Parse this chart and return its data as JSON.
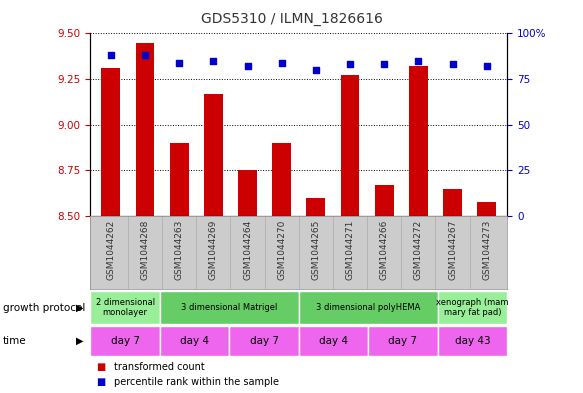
{
  "title": "GDS5310 / ILMN_1826616",
  "samples": [
    "GSM1044262",
    "GSM1044268",
    "GSM1044263",
    "GSM1044269",
    "GSM1044264",
    "GSM1044270",
    "GSM1044265",
    "GSM1044271",
    "GSM1044266",
    "GSM1044272",
    "GSM1044267",
    "GSM1044273"
  ],
  "bar_values": [
    9.31,
    9.45,
    8.9,
    9.17,
    8.75,
    8.9,
    8.6,
    9.27,
    8.67,
    9.32,
    8.65,
    8.58
  ],
  "dot_values": [
    88,
    88,
    84,
    85,
    82,
    84,
    80,
    83,
    83,
    85,
    83,
    82
  ],
  "ylim": [
    8.5,
    9.5
  ],
  "y2lim": [
    0,
    100
  ],
  "y_ticks": [
    8.5,
    8.75,
    9.0,
    9.25,
    9.5
  ],
  "y2_ticks": [
    0,
    25,
    50,
    75,
    100
  ],
  "bar_color": "#cc0000",
  "dot_color": "#0000cc",
  "bar_bottom": 8.5,
  "growth_protocol_groups": [
    {
      "label": "2 dimensional\nmonolayer",
      "start": 0,
      "end": 2,
      "color": "#99ee99"
    },
    {
      "label": "3 dimensional Matrigel",
      "start": 2,
      "end": 6,
      "color": "#66cc66"
    },
    {
      "label": "3 dimensional polyHEMA",
      "start": 6,
      "end": 10,
      "color": "#66cc66"
    },
    {
      "label": "xenograph (mam\nmary fat pad)",
      "start": 10,
      "end": 12,
      "color": "#99ee99"
    }
  ],
  "time_groups": [
    {
      "label": "day 7",
      "start": 0,
      "end": 2,
      "color": "#ee66ee"
    },
    {
      "label": "day 4",
      "start": 2,
      "end": 4,
      "color": "#ee66ee"
    },
    {
      "label": "day 7",
      "start": 4,
      "end": 6,
      "color": "#ee66ee"
    },
    {
      "label": "day 4",
      "start": 6,
      "end": 8,
      "color": "#ee66ee"
    },
    {
      "label": "day 7",
      "start": 8,
      "end": 10,
      "color": "#ee66ee"
    },
    {
      "label": "day 43",
      "start": 10,
      "end": 12,
      "color": "#ee66ee"
    }
  ],
  "legend_bar_label": "transformed count",
  "legend_dot_label": "percentile rank within the sample",
  "growth_protocol_label": "growth protocol",
  "time_label": "time",
  "title_color": "#333333",
  "left_label_color": "#cc0000",
  "right_label_color": "#0000cc",
  "sample_bg_color": "#cccccc",
  "figure_width": 5.83,
  "figure_height": 3.93,
  "dpi": 100
}
